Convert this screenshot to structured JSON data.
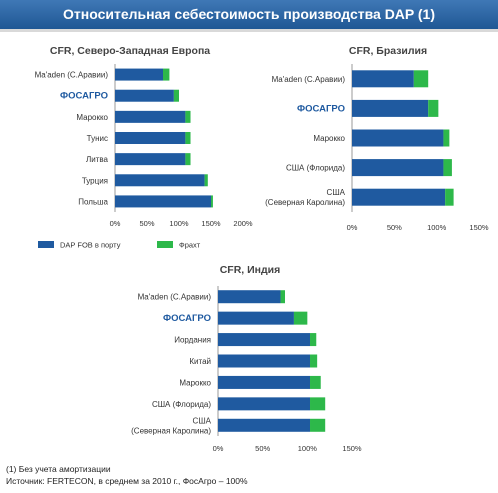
{
  "header": {
    "title": "Относительная себестоимость производства DAP (1)"
  },
  "colors": {
    "dap": "#1f5aa0",
    "freight": "#2db84a",
    "phosagro": "#1f5aa0",
    "text": "#333333"
  },
  "legend": {
    "dap": "DAP FOB в порту",
    "freight": "Фрахт"
  },
  "footnotes": {
    "note": "(1) Без учета амортизации",
    "source": "Источник: FERTECON, в среднем за 2010 г., ФосАгро – 100%"
  },
  "chart_data": [
    {
      "type": "bar",
      "orientation": "horizontal",
      "stacked": true,
      "title": "CFR, Северо-Западная Европа",
      "categories": [
        "Ma'aden (С.Аравии)",
        "ФОСАГРО",
        "Марокко",
        "Тунис",
        "Литва",
        "Турция",
        "Польша"
      ],
      "series": [
        {
          "name": "DAP FOB в порту",
          "values": [
            75,
            92,
            110,
            110,
            110,
            140,
            150
          ]
        },
        {
          "name": "Фрахт",
          "values": [
            10,
            8,
            8,
            8,
            8,
            5,
            3
          ]
        }
      ],
      "xlim": [
        0,
        200
      ],
      "xticks": [
        "0%",
        "50%",
        "100%",
        "150%",
        "200%"
      ],
      "legend": "bottom",
      "highlight": "ФОСАГРО"
    },
    {
      "type": "bar",
      "orientation": "horizontal",
      "stacked": true,
      "title": "CFR, Бразилия",
      "categories": [
        "Ma'aden (С.Аравии)",
        "ФОСАГРО",
        "Марокко",
        "США (Флорида)",
        "США\n(Северная Каролина)"
      ],
      "series": [
        {
          "name": "DAP FOB в порту",
          "values": [
            73,
            90,
            108,
            108,
            110
          ]
        },
        {
          "name": "Фрахт",
          "values": [
            17,
            12,
            7,
            10,
            10
          ]
        }
      ],
      "xlim": [
        0,
        150
      ],
      "xticks": [
        "0%",
        "50%",
        "100%",
        "150%"
      ],
      "highlight": "ФОСАГРО"
    },
    {
      "type": "bar",
      "orientation": "horizontal",
      "stacked": true,
      "title": "CFR, Индия",
      "categories": [
        "Ma'aden (С.Аравии)",
        "ФОСАГРО",
        "Иордания",
        "Китай",
        "Марокко",
        "США (Флорида)",
        "США\n(Северная Каролина)"
      ],
      "series": [
        {
          "name": "DAP FOB в порту",
          "values": [
            70,
            85,
            103,
            103,
            103,
            103,
            103
          ]
        },
        {
          "name": "Фрахт",
          "values": [
            5,
            15,
            7,
            8,
            12,
            17,
            17
          ]
        }
      ],
      "xlim": [
        0,
        150
      ],
      "xticks": [
        "0%",
        "50%",
        "100%",
        "150%"
      ],
      "highlight": "ФОСАГРО"
    }
  ]
}
